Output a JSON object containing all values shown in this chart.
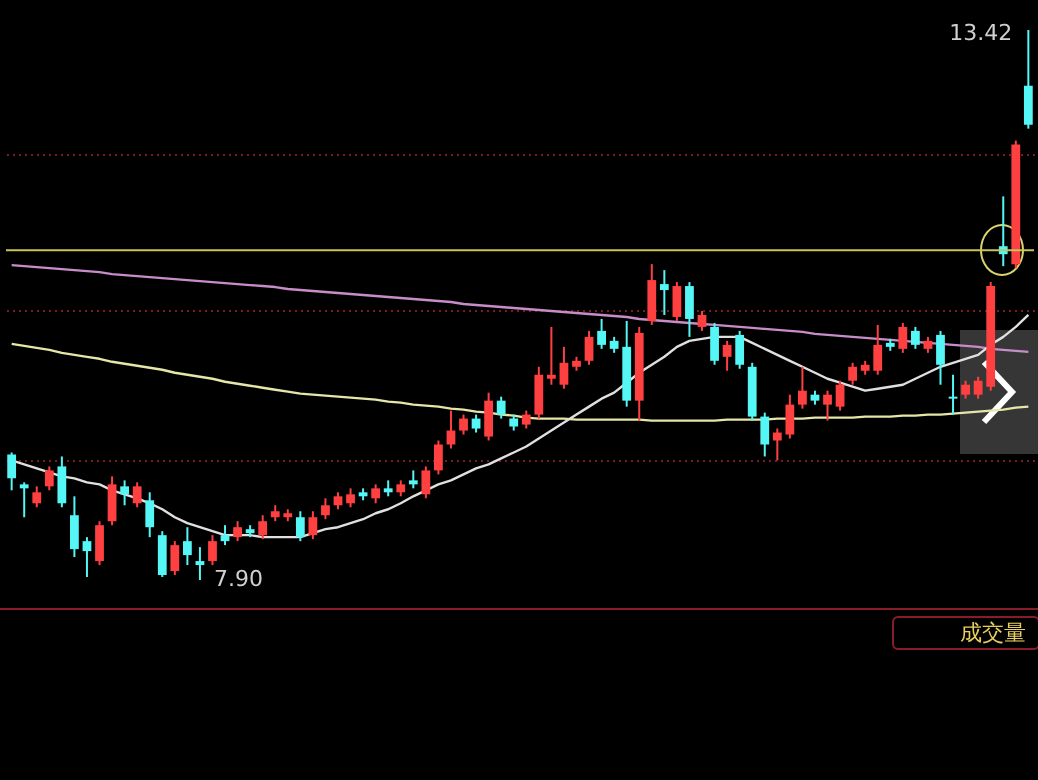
{
  "chart_data": {
    "type": "candlestick",
    "categories": [
      null,
      null,
      null,
      null,
      null,
      null,
      null,
      null,
      null,
      null,
      null,
      null,
      null,
      null,
      null,
      null,
      null,
      null,
      null,
      null,
      null,
      null,
      null,
      null,
      null,
      null,
      null,
      null,
      null,
      null,
      null,
      null,
      null,
      null,
      null,
      null,
      null,
      null,
      null,
      null,
      null,
      null,
      null,
      null,
      null,
      null,
      null,
      null,
      null,
      null,
      null,
      null,
      null,
      null,
      null,
      null,
      null,
      null,
      null,
      null,
      null,
      null,
      null,
      null,
      null,
      null,
      null,
      null,
      null,
      null,
      null,
      null,
      null,
      null,
      null,
      null,
      null,
      null,
      null,
      null,
      null,
      null
    ],
    "ohlc": [
      [
        9.16,
        9.18,
        8.8,
        8.92
      ],
      [
        8.86,
        8.88,
        8.53,
        8.82
      ],
      [
        8.67,
        8.84,
        8.63,
        8.78
      ],
      [
        8.84,
        9.04,
        8.8,
        9.0
      ],
      [
        9.04,
        9.14,
        8.63,
        8.67
      ],
      [
        8.55,
        8.74,
        8.13,
        8.21
      ],
      [
        8.29,
        8.33,
        7.93,
        8.19
      ],
      [
        8.09,
        8.49,
        8.05,
        8.45
      ],
      [
        8.49,
        8.94,
        8.45,
        8.86
      ],
      [
        8.84,
        8.9,
        8.65,
        8.76
      ],
      [
        8.67,
        8.88,
        8.63,
        8.84
      ],
      [
        8.7,
        8.78,
        8.33,
        8.43
      ],
      [
        8.35,
        8.39,
        7.93,
        7.95
      ],
      [
        7.99,
        8.29,
        7.95,
        8.25
      ],
      [
        8.29,
        8.43,
        8.05,
        8.15
      ],
      [
        8.09,
        8.23,
        7.9,
        8.05
      ],
      [
        8.09,
        8.35,
        8.05,
        8.29
      ],
      [
        8.35,
        8.45,
        8.25,
        8.29
      ],
      [
        8.33,
        8.49,
        8.29,
        8.43
      ],
      [
        8.41,
        8.45,
        8.33,
        8.37
      ],
      [
        8.35,
        8.55,
        8.31,
        8.49
      ],
      [
        8.53,
        8.65,
        8.49,
        8.59
      ],
      [
        8.53,
        8.61,
        8.49,
        8.57
      ],
      [
        8.53,
        8.59,
        8.29,
        8.33
      ],
      [
        8.35,
        8.59,
        8.31,
        8.53
      ],
      [
        8.55,
        8.72,
        8.51,
        8.65
      ],
      [
        8.65,
        8.78,
        8.61,
        8.74
      ],
      [
        8.67,
        8.82,
        8.63,
        8.76
      ],
      [
        8.78,
        8.82,
        8.7,
        8.74
      ],
      [
        8.72,
        8.86,
        8.67,
        8.82
      ],
      [
        8.82,
        8.9,
        8.74,
        8.78
      ],
      [
        8.78,
        8.9,
        8.74,
        8.86
      ],
      [
        8.9,
        9.0,
        8.82,
        8.86
      ],
      [
        8.76,
        9.04,
        8.72,
        9.0
      ],
      [
        9.0,
        9.3,
        8.96,
        9.26
      ],
      [
        9.26,
        9.6,
        9.22,
        9.4
      ],
      [
        9.4,
        9.56,
        9.36,
        9.52
      ],
      [
        9.52,
        9.56,
        9.38,
        9.42
      ],
      [
        9.34,
        9.78,
        9.3,
        9.7
      ],
      [
        9.7,
        9.74,
        9.52,
        9.56
      ],
      [
        9.52,
        9.56,
        9.4,
        9.44
      ],
      [
        9.46,
        9.6,
        9.42,
        9.56
      ],
      [
        9.56,
        10.04,
        9.52,
        9.96
      ],
      [
        9.92,
        10.44,
        9.86,
        9.96
      ],
      [
        9.86,
        10.24,
        9.82,
        10.08
      ],
      [
        10.04,
        10.14,
        10.0,
        10.1
      ],
      [
        10.1,
        10.4,
        10.06,
        10.34
      ],
      [
        10.4,
        10.52,
        10.22,
        10.26
      ],
      [
        10.3,
        10.34,
        10.18,
        10.22
      ],
      [
        10.24,
        10.5,
        9.64,
        9.7
      ],
      [
        9.7,
        10.44,
        9.5,
        10.38
      ],
      [
        10.5,
        11.07,
        10.46,
        10.91
      ],
      [
        10.87,
        11.01,
        10.56,
        10.81
      ],
      [
        10.54,
        10.89,
        10.5,
        10.85
      ],
      [
        10.85,
        10.89,
        10.34,
        10.52
      ],
      [
        10.44,
        10.6,
        10.4,
        10.56
      ],
      [
        10.44,
        10.48,
        10.06,
        10.1
      ],
      [
        10.14,
        10.3,
        10.0,
        10.26
      ],
      [
        10.36,
        10.4,
        10.02,
        10.06
      ],
      [
        10.04,
        10.08,
        9.5,
        9.54
      ],
      [
        9.54,
        9.58,
        9.14,
        9.26
      ],
      [
        9.3,
        9.42,
        9.1,
        9.38
      ],
      [
        9.36,
        9.76,
        9.32,
        9.66
      ],
      [
        9.66,
        10.04,
        9.62,
        9.8
      ],
      [
        9.76,
        9.8,
        9.66,
        9.7
      ],
      [
        9.66,
        9.8,
        9.5,
        9.76
      ],
      [
        9.64,
        9.9,
        9.6,
        9.86
      ],
      [
        9.9,
        10.08,
        9.86,
        10.04
      ],
      [
        10.0,
        10.1,
        9.96,
        10.06
      ],
      [
        10.0,
        10.46,
        9.96,
        10.26
      ],
      [
        10.28,
        10.32,
        10.2,
        10.24
      ],
      [
        10.22,
        10.48,
        10.18,
        10.44
      ],
      [
        10.4,
        10.44,
        10.22,
        10.26
      ],
      [
        10.22,
        10.34,
        10.18,
        10.3
      ],
      [
        10.36,
        10.4,
        9.86,
        10.06
      ],
      [
        9.74,
        9.96,
        9.56,
        9.72
      ],
      [
        9.76,
        9.9,
        9.72,
        9.86
      ],
      [
        9.76,
        9.94,
        9.72,
        9.9
      ],
      [
        9.84,
        10.89,
        9.8,
        10.85
      ],
      [
        11.25,
        11.75,
        11.05,
        11.17
      ],
      [
        11.07,
        12.31,
        11.03,
        12.27
      ],
      [
        12.86,
        13.42,
        12.43,
        12.47
      ]
    ],
    "series": [
      {
        "type": "line",
        "color": "#c88cc8",
        "values": [
          11.06,
          11.05,
          11.04,
          11.03,
          11.02,
          11.01,
          11.0,
          10.99,
          10.97,
          10.96,
          10.95,
          10.94,
          10.93,
          10.92,
          10.91,
          10.9,
          10.89,
          10.88,
          10.87,
          10.86,
          10.85,
          10.84,
          10.82,
          10.81,
          10.8,
          10.79,
          10.78,
          10.77,
          10.76,
          10.75,
          10.74,
          10.73,
          10.72,
          10.71,
          10.7,
          10.69,
          10.67,
          10.66,
          10.65,
          10.64,
          10.63,
          10.62,
          10.61,
          10.6,
          10.59,
          10.58,
          10.57,
          10.56,
          10.55,
          10.54,
          10.52,
          10.51,
          10.5,
          10.49,
          10.48,
          10.47,
          10.46,
          10.45,
          10.44,
          10.43,
          10.42,
          10.41,
          10.4,
          10.39,
          10.37,
          10.36,
          10.35,
          10.34,
          10.33,
          10.32,
          10.31,
          10.3,
          10.29,
          10.28,
          10.27,
          10.26,
          10.25,
          10.24,
          10.22,
          10.21,
          10.2,
          10.19
        ]
      },
      {
        "type": "line",
        "color": "#e6e6a8",
        "values": [
          10.27,
          10.25,
          10.23,
          10.21,
          10.18,
          10.16,
          10.14,
          10.12,
          10.09,
          10.07,
          10.05,
          10.03,
          10.01,
          9.98,
          9.96,
          9.94,
          9.92,
          9.89,
          9.87,
          9.85,
          9.83,
          9.81,
          9.79,
          9.77,
          9.76,
          9.75,
          9.74,
          9.73,
          9.72,
          9.71,
          9.69,
          9.68,
          9.66,
          9.65,
          9.64,
          9.62,
          9.61,
          9.59,
          9.58,
          9.56,
          9.55,
          9.53,
          9.52,
          9.52,
          9.52,
          9.51,
          9.51,
          9.51,
          9.51,
          9.51,
          9.51,
          9.5,
          9.5,
          9.5,
          9.5,
          9.5,
          9.5,
          9.51,
          9.51,
          9.51,
          9.51,
          9.52,
          9.52,
          9.52,
          9.53,
          9.53,
          9.53,
          9.53,
          9.54,
          9.54,
          9.54,
          9.55,
          9.55,
          9.56,
          9.56,
          9.57,
          9.58,
          9.59,
          9.6,
          9.61,
          9.63,
          9.64
        ]
      },
      {
        "type": "line",
        "color": "#e0e0e0",
        "values": [
          9.1,
          9.06,
          9.02,
          8.98,
          8.94,
          8.92,
          8.88,
          8.86,
          8.8,
          8.76,
          8.72,
          8.67,
          8.61,
          8.53,
          8.47,
          8.43,
          8.39,
          8.35,
          8.35,
          8.35,
          8.33,
          8.33,
          8.33,
          8.33,
          8.37,
          8.41,
          8.43,
          8.47,
          8.51,
          8.57,
          8.61,
          8.67,
          8.74,
          8.8,
          8.86,
          8.9,
          8.96,
          9.02,
          9.06,
          9.12,
          9.18,
          9.24,
          9.32,
          9.4,
          9.48,
          9.56,
          9.64,
          9.72,
          9.78,
          9.88,
          9.98,
          10.06,
          10.14,
          10.24,
          10.3,
          10.32,
          10.34,
          10.34,
          10.34,
          10.28,
          10.22,
          10.16,
          10.1,
          10.04,
          9.98,
          9.92,
          9.88,
          9.84,
          9.8,
          9.82,
          9.84,
          9.86,
          9.92,
          9.98,
          10.04,
          10.08,
          10.12,
          10.16,
          10.26,
          10.34,
          10.44,
          10.56
        ]
      }
    ],
    "yticks": [
      {
        "value": 9.1,
        "label": null
      },
      {
        "value": 10.6,
        "label": null
      },
      {
        "value": 12.17,
        "label": null
      }
    ],
    "grid": "y",
    "ref_lines": [
      {
        "axis": "y",
        "value": 11.21,
        "color": "#c8c458"
      }
    ],
    "annotations": [
      "13.42",
      "7.90",
      "成交量"
    ]
  }
}
